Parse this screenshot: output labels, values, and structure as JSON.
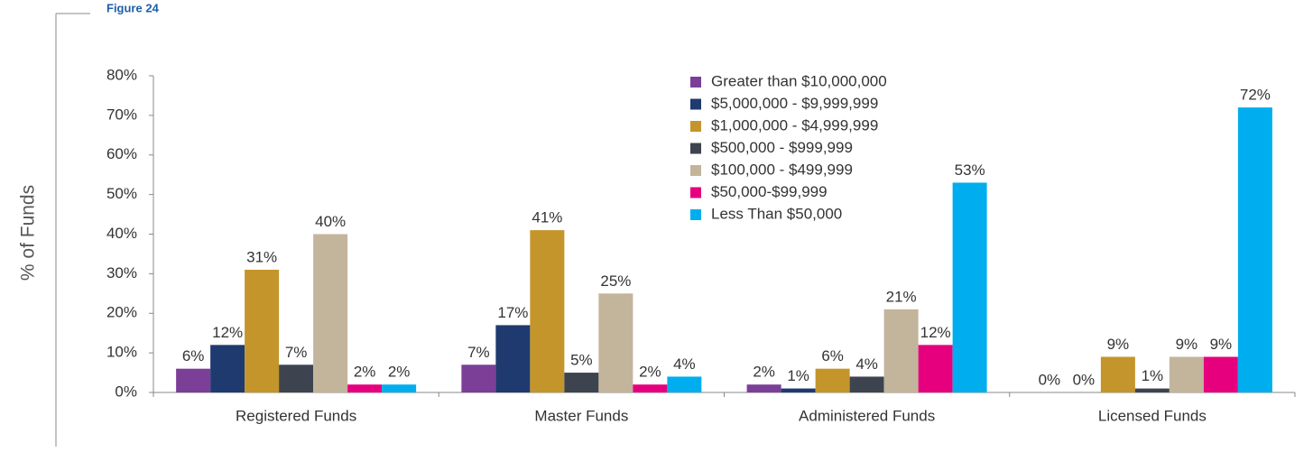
{
  "chart_data": {
    "type": "bar",
    "title": "Figure 24",
    "y_label": "% of Funds",
    "categories": [
      "Registered Funds",
      "Master Funds",
      "Administered Funds",
      "Licensed Funds"
    ],
    "ylim": [
      0,
      80
    ],
    "yticks": [
      {
        "value": 0,
        "label": "0%"
      },
      {
        "value": 10,
        "label": "10%"
      },
      {
        "value": 20,
        "label": "20%"
      },
      {
        "value": 30,
        "label": "30%"
      },
      {
        "value": 40,
        "label": "40%"
      },
      {
        "value": 50,
        "label": "50%"
      },
      {
        "value": 60,
        "label": "60%"
      },
      {
        "value": 70,
        "label": "70%"
      },
      {
        "value": 80,
        "label": "80%"
      }
    ],
    "grid": false,
    "legend": "top-center",
    "series": [
      {
        "name": "Greater than $10,000,000",
        "color": "#7b3f98",
        "values": [
          6,
          7,
          2,
          0
        ],
        "value_labels": [
          "6%",
          "7%",
          "2%",
          "0%"
        ]
      },
      {
        "name": "$5,000,000 - $9,999,999",
        "color": "#1f3a6e",
        "values": [
          12,
          17,
          1,
          0
        ],
        "value_labels": [
          "12%",
          "17%",
          "1%",
          "0%"
        ]
      },
      {
        "name": "$1,000,000 - $4,999,999",
        "color": "#c4952b",
        "values": [
          31,
          41,
          6,
          9
        ],
        "value_labels": [
          "31%",
          "41%",
          "6%",
          "9%"
        ]
      },
      {
        "name": "$500,000 - $999,999",
        "color": "#3d4450",
        "values": [
          7,
          5,
          4,
          1
        ],
        "value_labels": [
          "7%",
          "5%",
          "4%",
          "1%"
        ]
      },
      {
        "name": "$100,000 - $499,999",
        "color": "#c3b49c",
        "values": [
          40,
          25,
          21,
          9
        ],
        "value_labels": [
          "40%",
          "25%",
          "21%",
          "9%"
        ]
      },
      {
        "name": "$50,000-$99,999",
        "color": "#e6007e",
        "values": [
          2,
          2,
          12,
          9
        ],
        "value_labels": [
          "2%",
          "2%",
          "12%",
          "9%"
        ]
      },
      {
        "name": "Less Than $50,000",
        "color": "#00aeef",
        "values": [
          2,
          4,
          53,
          72
        ],
        "value_labels": [
          "2%",
          "4%",
          "53%",
          "72%"
        ]
      }
    ]
  }
}
